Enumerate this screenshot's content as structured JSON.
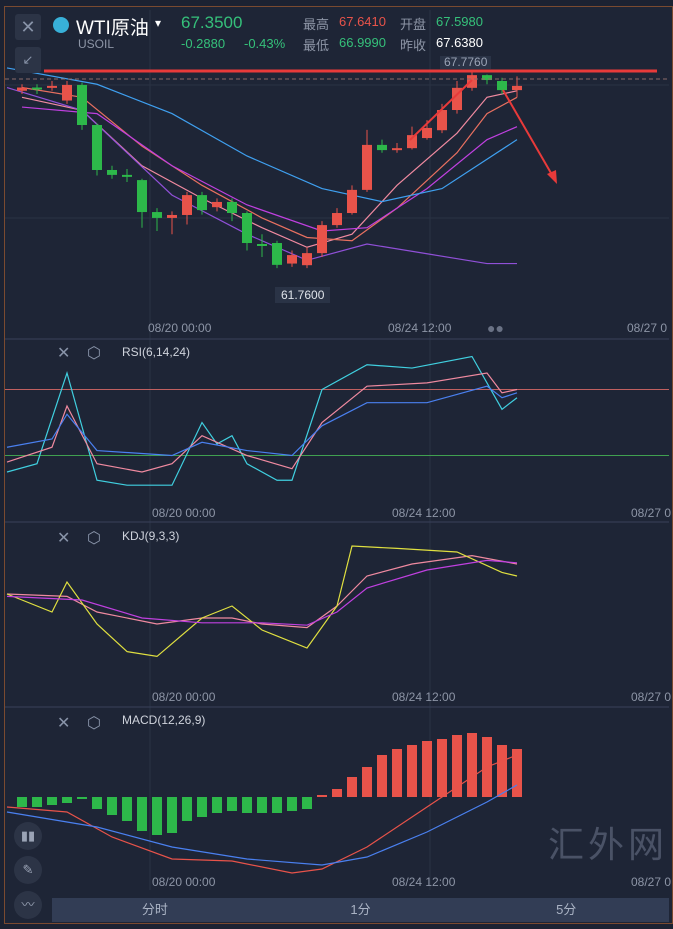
{
  "header": {
    "symbol": "WTI原油",
    "code": "USOIL",
    "price": "67.3500",
    "change": "-0.2880",
    "change_pct": "-0.43%",
    "high_label": "最高",
    "high": "67.6410",
    "open_label": "开盘",
    "open": "67.5980",
    "low_label": "最低",
    "low": "66.9990",
    "prev_label": "昨收",
    "prev": "67.6380"
  },
  "main": {
    "max_label": "67.7760",
    "min_label": "61.7600",
    "x_labels": [
      "08/20 00:00",
      "08/24 12:00",
      "08/27 0"
    ]
  },
  "panels": [
    {
      "title": "RSI(6,14,24)",
      "x_labels": [
        "08/20 00:00",
        "08/24 12:00",
        "08/27 0"
      ]
    },
    {
      "title": "KDJ(9,3,3)",
      "x_labels": [
        "08/20 00:00",
        "08/24 12:00",
        "08/27 0"
      ]
    },
    {
      "title": "MACD(12,26,9)",
      "x_labels": [
        "08/20 00:00",
        "08/24 12:00",
        "08/27 0"
      ]
    }
  ],
  "tabs": [
    "分时",
    "1分",
    "5分"
  ],
  "watermark": "汇外网",
  "colors": {
    "up": "#e8534a",
    "down": "#2db84a",
    "bg": "#1e2536"
  },
  "chart_data": {
    "type": "candlestick",
    "candles": [
      [
        67.2,
        67.3,
        67.4,
        67.1
      ],
      [
        67.3,
        67.25,
        67.4,
        67.1
      ],
      [
        67.3,
        67.35,
        67.5,
        67.2
      ],
      [
        66.9,
        67.38,
        67.5,
        66.8
      ],
      [
        67.38,
        66.15,
        67.45,
        66.0
      ],
      [
        66.15,
        64.77,
        66.2,
        64.6
      ],
      [
        64.77,
        64.62,
        64.9,
        64.5
      ],
      [
        64.62,
        64.6,
        64.8,
        64.4
      ],
      [
        64.46,
        63.48,
        64.5,
        63.0
      ],
      [
        63.48,
        63.3,
        63.6,
        62.9
      ],
      [
        63.3,
        63.39,
        63.5,
        62.8
      ],
      [
        63.39,
        64.0,
        64.1,
        63.1
      ],
      [
        64.0,
        63.54,
        64.1,
        63.4
      ],
      [
        63.63,
        63.79,
        63.9,
        63.5
      ],
      [
        63.79,
        63.45,
        63.9,
        63.2
      ],
      [
        63.45,
        62.53,
        63.5,
        62.3
      ],
      [
        62.5,
        62.47,
        62.8,
        62.1
      ],
      [
        62.53,
        61.86,
        62.6,
        61.76
      ],
      [
        61.9,
        62.16,
        62.3,
        61.8
      ],
      [
        61.85,
        62.22,
        62.4,
        61.76
      ],
      [
        62.22,
        63.08,
        63.2,
        62.1
      ],
      [
        63.08,
        63.45,
        63.6,
        63.0
      ],
      [
        63.45,
        64.16,
        64.3,
        63.4
      ],
      [
        64.16,
        65.54,
        66.0,
        64.1
      ],
      [
        65.54,
        65.38,
        65.7,
        65.3
      ],
      [
        65.4,
        65.44,
        65.6,
        65.3
      ],
      [
        65.44,
        65.84,
        66.1,
        65.4
      ],
      [
        65.75,
        66.06,
        66.3,
        65.7
      ],
      [
        65.99,
        66.61,
        66.8,
        65.9
      ],
      [
        66.61,
        67.29,
        67.5,
        66.5
      ],
      [
        67.29,
        67.68,
        67.776,
        67.2
      ],
      [
        67.68,
        67.53,
        67.7,
        67.4
      ],
      [
        67.5,
        67.22,
        67.6,
        67.1
      ],
      [
        67.22,
        67.35,
        67.64,
        67.0
      ]
    ],
    "ma": [
      {
        "color": "#f08aa0",
        "values": [
          [
            0,
            67.0
          ],
          [
            4,
            66.6
          ],
          [
            8,
            64.9
          ],
          [
            12,
            63.9
          ],
          [
            16,
            63.0
          ],
          [
            19,
            62.4
          ],
          [
            22,
            62.8
          ],
          [
            25,
            64.3
          ],
          [
            29,
            65.9
          ],
          [
            31,
            67.0
          ],
          [
            33,
            67.2
          ]
        ]
      },
      {
        "color": "#e87060",
        "values": [
          [
            0,
            67.3
          ],
          [
            4,
            67.0
          ],
          [
            8,
            65.5
          ],
          [
            12,
            64.3
          ],
          [
            16,
            63.3
          ],
          [
            19,
            62.7
          ],
          [
            22,
            62.6
          ],
          [
            25,
            63.6
          ],
          [
            29,
            65.3
          ],
          [
            31,
            66.5
          ],
          [
            33,
            67.0
          ]
        ]
      },
      {
        "color": "#c040e0",
        "values": [
          [
            0,
            66.7
          ],
          [
            5,
            66.5
          ],
          [
            10,
            64.9
          ],
          [
            15,
            63.7
          ],
          [
            20,
            62.9
          ],
          [
            23,
            63.0
          ],
          [
            27,
            64.2
          ],
          [
            31,
            65.7
          ],
          [
            33,
            66.1
          ]
        ]
      },
      {
        "color": "#3fa0f0",
        "values": [
          [
            -1,
            67.9
          ],
          [
            5,
            67.4
          ],
          [
            10,
            66.5
          ],
          [
            15,
            65.2
          ],
          [
            20,
            64.2
          ],
          [
            24,
            63.8
          ],
          [
            28,
            64.2
          ],
          [
            33,
            65.7
          ]
        ]
      },
      {
        "color": "#9050d8",
        "values": [
          [
            -1,
            67.3
          ],
          [
            4,
            66.6
          ],
          [
            10,
            64.0
          ],
          [
            15,
            62.8
          ],
          [
            19,
            62.0
          ],
          [
            23,
            62.5
          ],
          [
            27,
            62.2
          ],
          [
            31,
            61.9
          ],
          [
            33,
            61.9
          ]
        ]
      }
    ],
    "rsi": {
      "ylim": [
        0,
        100
      ],
      "levels": [
        70,
        30
      ],
      "series": [
        {
          "name": "RSI6",
          "color": "#40d0e0",
          "values": [
            [
              -1,
              20
            ],
            [
              1,
              25
            ],
            [
              3,
              80
            ],
            [
              5,
              15
            ],
            [
              7,
              12
            ],
            [
              10,
              12
            ],
            [
              12,
              50
            ],
            [
              13,
              37
            ],
            [
              14,
              42
            ],
            [
              15,
              25
            ],
            [
              17,
              15
            ],
            [
              18,
              15
            ],
            [
              20,
              70
            ],
            [
              23,
              85
            ],
            [
              26,
              83
            ],
            [
              30,
              90
            ],
            [
              32,
              58
            ],
            [
              33,
              65
            ]
          ]
        },
        {
          "name": "RSI12",
          "color": "#f08aa0",
          "values": [
            [
              -1,
              26
            ],
            [
              2,
              35
            ],
            [
              3,
              60
            ],
            [
              5,
              25
            ],
            [
              8,
              20
            ],
            [
              10,
              25
            ],
            [
              12,
              42
            ],
            [
              15,
              30
            ],
            [
              18,
              22
            ],
            [
              20,
              50
            ],
            [
              23,
              72
            ],
            [
              27,
              74
            ],
            [
              31,
              80
            ],
            [
              32,
              68
            ],
            [
              33,
              70
            ]
          ]
        },
        {
          "name": "RSI24",
          "color": "#4a80f0",
          "values": [
            [
              -1,
              35
            ],
            [
              2,
              40
            ],
            [
              3,
              55
            ],
            [
              5,
              33
            ],
            [
              10,
              30
            ],
            [
              12,
              38
            ],
            [
              15,
              33
            ],
            [
              18,
              30
            ],
            [
              20,
              48
            ],
            [
              23,
              62
            ],
            [
              27,
              62
            ],
            [
              31,
              72
            ],
            [
              32,
              65
            ],
            [
              33,
              68
            ]
          ]
        }
      ]
    },
    "kdj": {
      "ylim": [
        -20,
        120
      ],
      "series": [
        {
          "name": "K",
          "color": "#f08aa0",
          "values": [
            [
              -1,
              60
            ],
            [
              3,
              58
            ],
            [
              5,
              45
            ],
            [
              9,
              35
            ],
            [
              12,
              40
            ],
            [
              14,
              40
            ],
            [
              16,
              35
            ],
            [
              19,
              32
            ],
            [
              21,
              50
            ],
            [
              23,
              75
            ],
            [
              26,
              85
            ],
            [
              30,
              92
            ],
            [
              33,
              85
            ]
          ]
        },
        {
          "name": "D",
          "color": "#e0e040",
          "values": [
            [
              -1,
              60
            ],
            [
              2,
              45
            ],
            [
              3,
              70
            ],
            [
              5,
              35
            ],
            [
              7,
              12
            ],
            [
              9,
              8
            ],
            [
              12,
              40
            ],
            [
              14,
              50
            ],
            [
              16,
              30
            ],
            [
              19,
              15
            ],
            [
              21,
              50
            ],
            [
              22,
              100
            ],
            [
              25,
              98
            ],
            [
              29,
              95
            ],
            [
              32,
              78
            ],
            [
              33,
              75
            ]
          ]
        },
        {
          "name": "J",
          "color": "#c040e0",
          "values": [
            [
              -1,
              58
            ],
            [
              4,
              55
            ],
            [
              8,
              40
            ],
            [
              12,
              36
            ],
            [
              16,
              36
            ],
            [
              19,
              34
            ],
            [
              21,
              45
            ],
            [
              23,
              65
            ],
            [
              27,
              80
            ],
            [
              31,
              88
            ],
            [
              33,
              86
            ]
          ]
        }
      ]
    },
    "macd": {
      "ylim": [
        -0.8,
        0.8
      ],
      "hist": [
        -0.1,
        -0.1,
        -0.08,
        -0.06,
        -0.02,
        -0.12,
        -0.18,
        -0.24,
        -0.34,
        -0.38,
        -0.36,
        -0.24,
        -0.2,
        -0.16,
        -0.14,
        -0.16,
        -0.16,
        -0.16,
        -0.14,
        -0.12,
        0.02,
        0.08,
        0.2,
        0.3,
        0.42,
        0.48,
        0.52,
        0.56,
        0.58,
        0.62,
        0.64,
        0.6,
        0.52,
        0.48
      ],
      "dif": {
        "color": "#e8534a",
        "values": [
          [
            -1,
            -0.1
          ],
          [
            3,
            -0.15
          ],
          [
            6,
            -0.4
          ],
          [
            10,
            -0.62
          ],
          [
            14,
            -0.64
          ],
          [
            18,
            -0.76
          ],
          [
            20,
            -0.72
          ],
          [
            23,
            -0.5
          ],
          [
            27,
            -0.1
          ],
          [
            31,
            0.3
          ],
          [
            33,
            0.42
          ]
        ]
      },
      "dea": {
        "color": "#4a80f0",
        "values": [
          [
            -1,
            -0.15
          ],
          [
            5,
            -0.3
          ],
          [
            10,
            -0.5
          ],
          [
            15,
            -0.62
          ],
          [
            20,
            -0.68
          ],
          [
            23,
            -0.6
          ],
          [
            27,
            -0.35
          ],
          [
            31,
            -0.05
          ],
          [
            33,
            0.12
          ]
        ]
      }
    }
  }
}
